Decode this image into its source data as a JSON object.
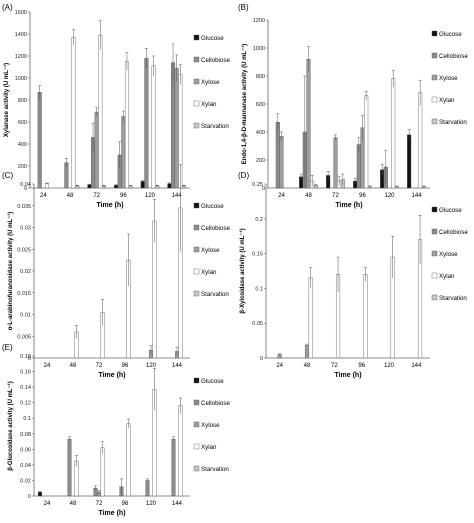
{
  "charts_meta": {
    "categories": [
      "24",
      "48",
      "72",
      "96",
      "120",
      "144"
    ],
    "legend": [
      "Glucose",
      "Cellobiose",
      "Xylose",
      "Xylan",
      "Starvation"
    ],
    "colors": {
      "Glucose": "#111111",
      "Cellobiose": "#8c8c8c",
      "Xylose": "#9e9e9e",
      "Xylan": "#ffffff",
      "Starvation": "#c8c8c8"
    },
    "xlabel": "Time (h)"
  },
  "chart_data": [
    {
      "panel": "(A)",
      "type": "bar",
      "ylabel": "Xylanase activity (U mL⁻¹)",
      "xlabel": "Time (h)",
      "ylim": [
        0,
        1600
      ],
      "yticks": [
        0,
        200,
        400,
        600,
        800,
        1000,
        1200,
        1400,
        1600
      ],
      "ytick_labels": [
        "0",
        "200",
        "400",
        "600",
        "800",
        "1000",
        "1200",
        "1400",
        "1600"
      ],
      "categories": [
        "24",
        "48",
        "72",
        "96",
        "120",
        "144"
      ],
      "series": [
        {
          "name": "Glucose",
          "values": [
            0,
            0,
            30,
            25,
            60,
            40
          ],
          "errors": [
            0,
            0,
            5,
            5,
            8,
            6
          ]
        },
        {
          "name": "Cellobiose",
          "values": [
            870,
            230,
            460,
            300,
            1180,
            1140
          ],
          "errors": [
            60,
            40,
            130,
            120,
            90,
            170
          ]
        },
        {
          "name": "Xylose",
          "values": [
            0,
            0,
            690,
            650,
            0,
            1090
          ],
          "errors": [
            0,
            0,
            40,
            50,
            0,
            120
          ]
        },
        {
          "name": "Xylan",
          "values": [
            40,
            1370,
            1390,
            1150,
            1110,
            1030
          ],
          "errors": [
            5,
            70,
            130,
            80,
            90,
            90
          ]
        },
        {
          "name": "Starvation",
          "values": [
            0,
            20,
            20,
            20,
            20,
            20
          ],
          "errors": [
            0,
            5,
            5,
            5,
            5,
            5
          ]
        }
      ]
    },
    {
      "panel": "(B)",
      "type": "bar",
      "ylabel": "Endo-1,4-β-D-mannanase activity (U mL⁻¹)",
      "xlabel": "Time (h)",
      "ylim": [
        0,
        1200
      ],
      "yticks": [
        0,
        200,
        400,
        600,
        800,
        1000,
        1200
      ],
      "ytick_labels": [
        "0",
        "200",
        "400",
        "600",
        "800",
        "1000",
        "1200"
      ],
      "categories": [
        "24",
        "48",
        "72",
        "96",
        "120",
        "144"
      ],
      "series": [
        {
          "name": "Glucose",
          "values": [
            0,
            80,
            90,
            50,
            130,
            380
          ],
          "errors": [
            0,
            20,
            30,
            20,
            40,
            40
          ]
        },
        {
          "name": "Cellobiose",
          "values": [
            470,
            400,
            0,
            310,
            150,
            0
          ],
          "errors": [
            60,
            400,
            0,
            50,
            120,
            0
          ]
        },
        {
          "name": "Xylose",
          "values": [
            370,
            920,
            360,
            430,
            0,
            0
          ],
          "errors": [
            30,
            90,
            20,
            90,
            0,
            0
          ]
        },
        {
          "name": "Xylan",
          "values": [
            0,
            50,
            50,
            660,
            780,
            680
          ],
          "errors": [
            0,
            40,
            30,
            30,
            60,
            90
          ]
        },
        {
          "name": "Starvation",
          "values": [
            0,
            20,
            60,
            10,
            10,
            10
          ],
          "errors": [
            0,
            5,
            40,
            5,
            5,
            5
          ]
        }
      ]
    },
    {
      "panel": "(C)",
      "type": "bar",
      "ylabel": "α-L-arabinofuranosidase activity (U mL⁻¹)",
      "xlabel": "Time (h)",
      "ylim": [
        0,
        0.04
      ],
      "yticks": [
        0,
        0.005,
        0.01,
        0.015,
        0.02,
        0.025,
        0.03,
        0.035,
        0.04
      ],
      "ytick_labels": [
        "0",
        "0.005",
        "0.01",
        "0.015",
        "0.02",
        "0.025",
        "0.03",
        "0.035",
        "0.04"
      ],
      "categories": [
        "24",
        "48",
        "72",
        "96",
        "120",
        "144"
      ],
      "series": [
        {
          "name": "Glucose",
          "values": [
            0,
            0,
            0,
            0,
            0,
            0
          ],
          "errors": [
            0,
            0,
            0,
            0,
            0,
            0
          ]
        },
        {
          "name": "Cellobiose",
          "values": [
            0,
            0,
            0,
            0,
            0,
            0
          ],
          "errors": [
            0,
            0,
            0,
            0,
            0,
            0
          ]
        },
        {
          "name": "Xylose",
          "values": [
            0,
            0,
            0,
            0,
            0.0018,
            0.0015
          ],
          "errors": [
            0,
            0,
            0,
            0,
            0.001,
            0.001
          ]
        },
        {
          "name": "Xylan",
          "values": [
            0,
            0.006,
            0.0105,
            0.0225,
            0.0315,
            0.0345
          ],
          "errors": [
            0,
            0.0015,
            0.003,
            0.006,
            0.005,
            0.01
          ]
        },
        {
          "name": "Starvation",
          "values": [
            0,
            0,
            0,
            0,
            0,
            0
          ],
          "errors": [
            0,
            0,
            0,
            0,
            0,
            0
          ]
        }
      ]
    },
    {
      "panel": "(D)",
      "type": "bar",
      "ylabel": "β-Xylosidase activity (U mL⁻¹)",
      "xlabel": "Time (h)",
      "ylim": [
        0,
        0.25
      ],
      "yticks": [
        0,
        0.05,
        0.1,
        0.15,
        0.2,
        0.25
      ],
      "ytick_labels": [
        "0",
        "0.05",
        "0.1",
        "0.15",
        "0.2",
        "0.25"
      ],
      "categories": [
        "24",
        "48",
        "72",
        "96",
        "120",
        "144"
      ],
      "series": [
        {
          "name": "Glucose",
          "values": [
            0,
            0,
            0,
            0,
            0,
            0
          ],
          "errors": [
            0,
            0,
            0,
            0,
            0,
            0
          ]
        },
        {
          "name": "Cellobiose",
          "values": [
            0,
            0,
            0,
            0,
            0,
            0
          ],
          "errors": [
            0,
            0,
            0,
            0,
            0,
            0
          ]
        },
        {
          "name": "Xylose",
          "values": [
            0.005,
            0.018,
            0,
            0,
            0,
            0
          ],
          "errors": [
            0.001,
            0.002,
            0,
            0,
            0,
            0
          ]
        },
        {
          "name": "Xylan",
          "values": [
            0,
            0.115,
            0.12,
            0.12,
            0.145,
            0.17
          ],
          "errors": [
            0,
            0.015,
            0.025,
            0.01,
            0.03,
            0.035
          ]
        },
        {
          "name": "Starvation",
          "values": [
            0,
            0,
            0,
            0,
            0,
            0
          ],
          "errors": [
            0,
            0,
            0,
            0,
            0,
            0
          ]
        }
      ]
    },
    {
      "panel": "(E)",
      "type": "bar",
      "ylabel": "β-Glucosidase activity (U mL⁻¹)",
      "xlabel": "Time (h)",
      "ylim": [
        0,
        0.18
      ],
      "yticks": [
        0,
        0.02,
        0.04,
        0.06,
        0.08,
        0.1,
        0.12,
        0.14,
        0.16,
        0.18
      ],
      "ytick_labels": [
        "0",
        "0.02",
        "0.04",
        "0.06",
        "0.08",
        "0.1",
        "0.12",
        "0.14",
        "0.16",
        "0.18"
      ],
      "categories": [
        "24",
        "48",
        "72",
        "96",
        "120",
        "144"
      ],
      "series": [
        {
          "name": "Glucose",
          "values": [
            0.005,
            0,
            0,
            0,
            0,
            0
          ],
          "errors": [
            0.001,
            0,
            0,
            0,
            0,
            0
          ]
        },
        {
          "name": "Cellobiose",
          "values": [
            0,
            0.073,
            0.01,
            0.012,
            0.02,
            0.073
          ],
          "errors": [
            0,
            0.003,
            0.003,
            0.01,
            0.002,
            0.003
          ]
        },
        {
          "name": "Xylose",
          "values": [
            0,
            0,
            0.005,
            0,
            0,
            0
          ],
          "errors": [
            0,
            0,
            0.002,
            0,
            0,
            0
          ]
        },
        {
          "name": "Xylan",
          "values": [
            0,
            0.045,
            0.062,
            0.093,
            0.137,
            0.116
          ],
          "errors": [
            0,
            0.007,
            0.008,
            0.006,
            0.027,
            0.01
          ]
        },
        {
          "name": "Starvation",
          "values": [
            0,
            0,
            0,
            0,
            0,
            0
          ],
          "errors": [
            0,
            0,
            0,
            0,
            0,
            0
          ]
        }
      ]
    }
  ]
}
